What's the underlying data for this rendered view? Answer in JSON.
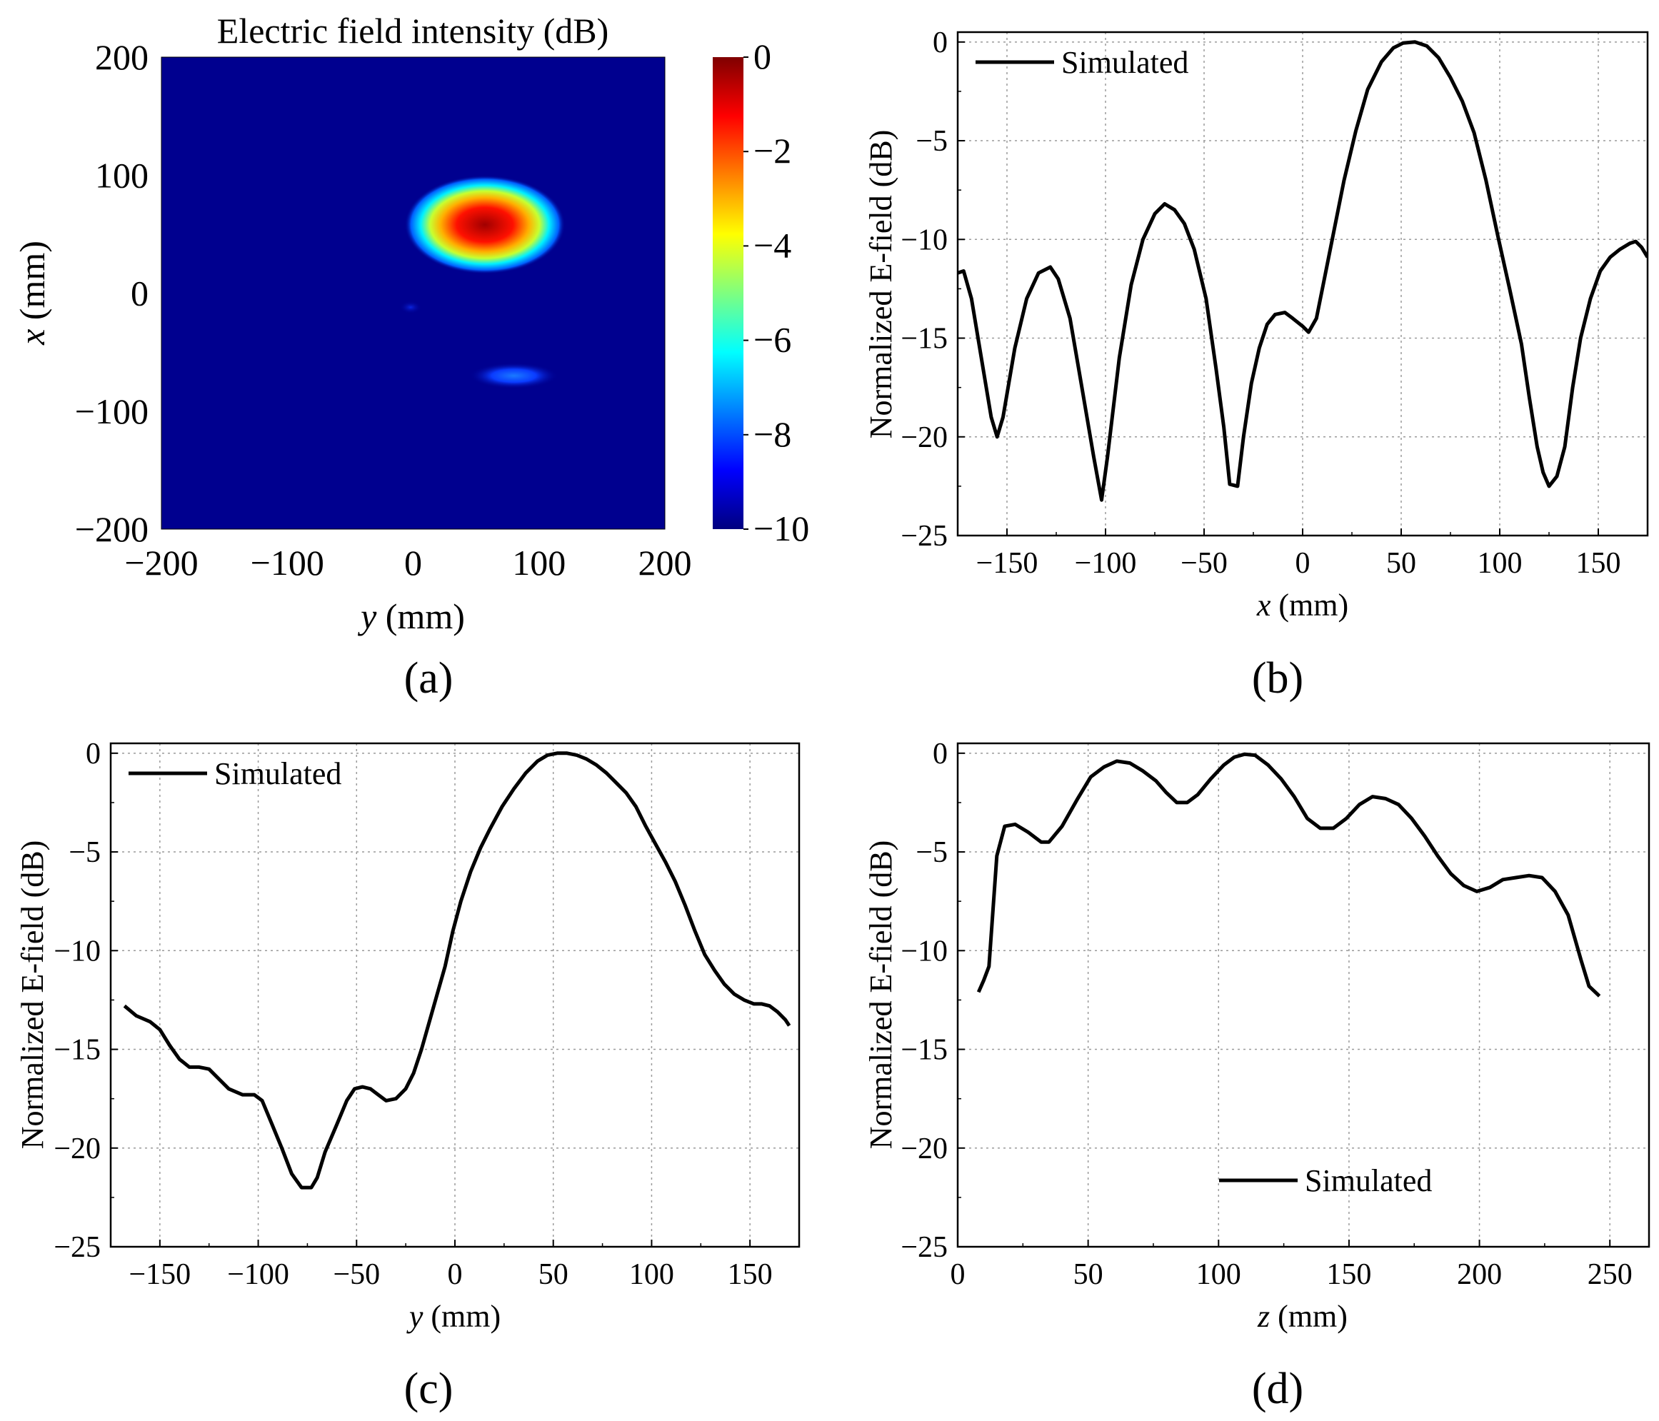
{
  "panels": {
    "a": {
      "label": "(a)"
    },
    "b": {
      "label": "(b)"
    },
    "c": {
      "label": "(c)"
    },
    "d": {
      "label": "(d)"
    }
  },
  "chart_data": [
    {
      "id": "a",
      "type": "heatmap",
      "title": "Electric field intensity (dB)",
      "xlabel": "y (mm)",
      "ylabel": "x (mm)",
      "xlim": [
        -200,
        200
      ],
      "ylim": [
        -200,
        200
      ],
      "xticks": [
        -200,
        -100,
        0,
        100,
        200
      ],
      "yticks": [
        -200,
        -100,
        0,
        100,
        200
      ],
      "xtick_labels": [
        "−200",
        "−100",
        "0",
        "100",
        "200"
      ],
      "ytick_labels": [
        "−200",
        "−100",
        "0",
        "100",
        "200"
      ],
      "colorbar": {
        "min": -10,
        "max": 0,
        "ticks": [
          0,
          -2,
          -4,
          -6,
          -8,
          -10
        ],
        "tick_labels": [
          "0",
          "−2",
          "−4",
          "−6",
          "−8",
          "−10"
        ],
        "colormap": "jet"
      },
      "hotspots": [
        {
          "y": 57,
          "x": 58,
          "peak_db": 0,
          "ry": 58,
          "rx": 38
        },
        {
          "y": 80,
          "x": -70,
          "peak_db": -8,
          "ry": 32,
          "rx": 10
        },
        {
          "y": -2,
          "x": -12,
          "peak_db": -9.5,
          "ry": 8,
          "rx": 5
        }
      ],
      "background_db": -10
    },
    {
      "id": "b",
      "type": "line",
      "xlabel": "x (mm)",
      "ylabel": "Normalized E-field (dB)",
      "xlim": [
        -175,
        175
      ],
      "ylim": [
        -25,
        0.5
      ],
      "xticks": [
        -150,
        -100,
        -50,
        0,
        50,
        100,
        150
      ],
      "yticks": [
        0,
        -5,
        -10,
        -15,
        -20,
        -25
      ],
      "xtick_labels": [
        "−150",
        "−100",
        "−50",
        "0",
        "50",
        "100",
        "150"
      ],
      "ytick_labels": [
        "0",
        "−5",
        "−10",
        "−15",
        "−20",
        "−25"
      ],
      "grid": true,
      "legend": "top-left",
      "series": [
        {
          "name": "Simulated",
          "color": "#000000",
          "points": [
            [
              -175,
              -11.7
            ],
            [
              -172,
              -11.6
            ],
            [
              -168,
              -13
            ],
            [
              -163,
              -16
            ],
            [
              -158,
              -19
            ],
            [
              -155,
              -20
            ],
            [
              -152,
              -19
            ],
            [
              -146,
              -15.5
            ],
            [
              -140,
              -13
            ],
            [
              -134,
              -11.7
            ],
            [
              -128,
              -11.4
            ],
            [
              -124,
              -12
            ],
            [
              -118,
              -14
            ],
            [
              -112,
              -17.5
            ],
            [
              -106,
              -21
            ],
            [
              -102,
              -23.2
            ],
            [
              -99,
              -21
            ],
            [
              -93,
              -16
            ],
            [
              -87,
              -12.3
            ],
            [
              -81,
              -10
            ],
            [
              -75,
              -8.7
            ],
            [
              -70,
              -8.2
            ],
            [
              -65,
              -8.5
            ],
            [
              -60,
              -9.2
            ],
            [
              -55,
              -10.5
            ],
            [
              -49,
              -13
            ],
            [
              -44,
              -16.5
            ],
            [
              -40,
              -19.5
            ],
            [
              -37,
              -22.4
            ],
            [
              -33,
              -22.5
            ],
            [
              -30,
              -20
            ],
            [
              -26,
              -17.3
            ],
            [
              -22,
              -15.5
            ],
            [
              -18,
              -14.3
            ],
            [
              -14,
              -13.8
            ],
            [
              -9,
              -13.7
            ],
            [
              -5,
              -14
            ],
            [
              0,
              -14.4
            ],
            [
              3,
              -14.7
            ],
            [
              7,
              -14
            ],
            [
              11,
              -12
            ],
            [
              16,
              -9.5
            ],
            [
              21,
              -7
            ],
            [
              27,
              -4.5
            ],
            [
              33,
              -2.4
            ],
            [
              40,
              -1
            ],
            [
              46,
              -0.3
            ],
            [
              51,
              -0.05
            ],
            [
              57,
              0
            ],
            [
              63,
              -0.2
            ],
            [
              69,
              -0.8
            ],
            [
              75,
              -1.8
            ],
            [
              81,
              -3
            ],
            [
              87,
              -4.6
            ],
            [
              93,
              -7
            ],
            [
              99,
              -9.8
            ],
            [
              105,
              -12.5
            ],
            [
              111,
              -15.3
            ],
            [
              115,
              -18
            ],
            [
              119,
              -20.5
            ],
            [
              122,
              -21.8
            ],
            [
              125,
              -22.5
            ],
            [
              129,
              -22
            ],
            [
              133,
              -20.5
            ],
            [
              137,
              -17.5
            ],
            [
              141,
              -15
            ],
            [
              146,
              -13
            ],
            [
              151,
              -11.6
            ],
            [
              156,
              -10.9
            ],
            [
              161,
              -10.5
            ],
            [
              166,
              -10.2
            ],
            [
              169,
              -10.1
            ],
            [
              172,
              -10.4
            ],
            [
              175,
              -10.9
            ]
          ]
        }
      ]
    },
    {
      "id": "c",
      "type": "line",
      "xlabel": "y (mm)",
      "ylabel": "Normalized E-field (dB)",
      "xlim": [
        -175,
        175
      ],
      "ylim": [
        -25,
        0.5
      ],
      "xticks": [
        -150,
        -100,
        -50,
        0,
        50,
        100,
        150
      ],
      "yticks": [
        0,
        -5,
        -10,
        -15,
        -20,
        -25
      ],
      "xtick_labels": [
        "−150",
        "−100",
        "−50",
        "0",
        "50",
        "100",
        "150"
      ],
      "ytick_labels": [
        "0",
        "−5",
        "−10",
        "−15",
        "−20",
        "−25"
      ],
      "grid": true,
      "legend": "top-left",
      "series": [
        {
          "name": "Simulated",
          "color": "#000000",
          "points": [
            [
              -168,
              -12.8
            ],
            [
              -162,
              -13.3
            ],
            [
              -155,
              -13.6
            ],
            [
              -150,
              -14
            ],
            [
              -145,
              -14.8
            ],
            [
              -140,
              -15.5
            ],
            [
              -135,
              -15.9
            ],
            [
              -130,
              -15.9
            ],
            [
              -125,
              -16
            ],
            [
              -120,
              -16.5
            ],
            [
              -115,
              -17
            ],
            [
              -108,
              -17.3
            ],
            [
              -102,
              -17.3
            ],
            [
              -98,
              -17.6
            ],
            [
              -93,
              -18.8
            ],
            [
              -88,
              -20
            ],
            [
              -83,
              -21.3
            ],
            [
              -78,
              -22
            ],
            [
              -73,
              -22
            ],
            [
              -70,
              -21.5
            ],
            [
              -66,
              -20.2
            ],
            [
              -60,
              -18.8
            ],
            [
              -55,
              -17.6
            ],
            [
              -51,
              -17
            ],
            [
              -47,
              -16.9
            ],
            [
              -43,
              -17
            ],
            [
              -39,
              -17.3
            ],
            [
              -35,
              -17.6
            ],
            [
              -30,
              -17.5
            ],
            [
              -25,
              -17
            ],
            [
              -21,
              -16.2
            ],
            [
              -17,
              -15
            ],
            [
              -13,
              -13.6
            ],
            [
              -9,
              -12.2
            ],
            [
              -5,
              -10.8
            ],
            [
              -1,
              -9
            ],
            [
              3,
              -7.5
            ],
            [
              8,
              -6
            ],
            [
              13,
              -4.8
            ],
            [
              18,
              -3.8
            ],
            [
              24,
              -2.7
            ],
            [
              30,
              -1.8
            ],
            [
              36,
              -1
            ],
            [
              42,
              -0.4
            ],
            [
              47,
              -0.1
            ],
            [
              52,
              0
            ],
            [
              57,
              0
            ],
            [
              62,
              -0.1
            ],
            [
              67,
              -0.3
            ],
            [
              72,
              -0.6
            ],
            [
              77,
              -1
            ],
            [
              82,
              -1.5
            ],
            [
              87,
              -2
            ],
            [
              92,
              -2.7
            ],
            [
              97,
              -3.7
            ],
            [
              102,
              -4.6
            ],
            [
              107,
              -5.5
            ],
            [
              112,
              -6.5
            ],
            [
              117,
              -7.7
            ],
            [
              122,
              -9
            ],
            [
              127,
              -10.2
            ],
            [
              132,
              -11
            ],
            [
              137,
              -11.7
            ],
            [
              142,
              -12.2
            ],
            [
              147,
              -12.5
            ],
            [
              152,
              -12.7
            ],
            [
              156,
              -12.7
            ],
            [
              160,
              -12.8
            ],
            [
              164,
              -13.1
            ],
            [
              168,
              -13.5
            ],
            [
              170,
              -13.8
            ]
          ]
        }
      ]
    },
    {
      "id": "d",
      "type": "line",
      "xlabel": "z (mm)",
      "ylabel": "Normalized E-field (dB)",
      "xlim": [
        0,
        265
      ],
      "ylim": [
        -25,
        0.5
      ],
      "xticks": [
        0,
        50,
        100,
        150,
        200,
        250
      ],
      "yticks": [
        0,
        -5,
        -10,
        -15,
        -20,
        -25
      ],
      "xtick_labels": [
        "0",
        "50",
        "100",
        "150",
        "200",
        "250"
      ],
      "ytick_labels": [
        "0",
        "−5",
        "−10",
        "−15",
        "−20",
        "−25"
      ],
      "grid": true,
      "legend": "bottom-center",
      "series": [
        {
          "name": "Simulated",
          "color": "#000000",
          "points": [
            [
              8,
              -12.1
            ],
            [
              10,
              -11.5
            ],
            [
              12,
              -10.8
            ],
            [
              15,
              -5.2
            ],
            [
              18,
              -3.7
            ],
            [
              22,
              -3.6
            ],
            [
              27,
              -4
            ],
            [
              32,
              -4.5
            ],
            [
              35,
              -4.5
            ],
            [
              40,
              -3.7
            ],
            [
              46,
              -2.3
            ],
            [
              51,
              -1.2
            ],
            [
              56,
              -0.7
            ],
            [
              61,
              -0.4
            ],
            [
              66,
              -0.5
            ],
            [
              71,
              -0.9
            ],
            [
              76,
              -1.4
            ],
            [
              80,
              -2
            ],
            [
              84,
              -2.5
            ],
            [
              88,
              -2.5
            ],
            [
              92,
              -2.1
            ],
            [
              97,
              -1.3
            ],
            [
              102,
              -0.6
            ],
            [
              106,
              -0.2
            ],
            [
              110,
              -0.05
            ],
            [
              114,
              -0.1
            ],
            [
              119,
              -0.6
            ],
            [
              124,
              -1.3
            ],
            [
              129,
              -2.2
            ],
            [
              134,
              -3.3
            ],
            [
              139,
              -3.8
            ],
            [
              144,
              -3.8
            ],
            [
              149,
              -3.3
            ],
            [
              154,
              -2.6
            ],
            [
              159,
              -2.2
            ],
            [
              164,
              -2.3
            ],
            [
              169,
              -2.6
            ],
            [
              174,
              -3.3
            ],
            [
              179,
              -4.2
            ],
            [
              184,
              -5.2
            ],
            [
              189,
              -6.1
            ],
            [
              194,
              -6.7
            ],
            [
              199,
              -7
            ],
            [
              204,
              -6.8
            ],
            [
              209,
              -6.4
            ],
            [
              214,
              -6.3
            ],
            [
              219,
              -6.2
            ],
            [
              224,
              -6.3
            ],
            [
              229,
              -7
            ],
            [
              234,
              -8.2
            ],
            [
              239,
              -10.5
            ],
            [
              242,
              -11.8
            ],
            [
              246,
              -12.3
            ]
          ]
        }
      ]
    }
  ]
}
